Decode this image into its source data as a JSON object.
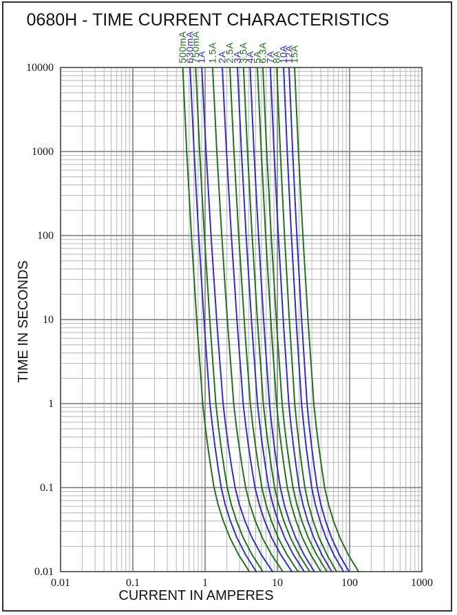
{
  "page": {
    "background": "#ffffff",
    "border_color": "#2f2f2f"
  },
  "chart": {
    "title": "0680H - TIME CURRENT CHARACTERISTICS",
    "xlabel": "CURRENT IN AMPERES",
    "ylabel": "TIME IN SECONDS",
    "x_tick_labels": [
      "0.01",
      "0.1",
      "1",
      "10",
      "100",
      "1000"
    ],
    "y_tick_labels": [
      "10000",
      "1000",
      "100",
      "10",
      "1",
      "0.1",
      "0.01"
    ]
  },
  "chart_data": {
    "type": "line",
    "title": "0680H - TIME CURRENT CHARACTERISTICS",
    "xlabel": "CURRENT IN AMPERES",
    "ylabel": "TIME IN SECONDS",
    "x_axis": {
      "scale": "log",
      "min": 0.01,
      "max": 1000,
      "ticks": [
        0.01,
        0.1,
        1,
        10,
        100,
        1000
      ]
    },
    "y_axis": {
      "scale": "log",
      "min": 0.01,
      "max": 10000,
      "ticks": [
        10000,
        1000,
        100,
        10,
        1,
        0.1,
        0.01
      ]
    },
    "grid": "log-minor-and-major",
    "legend_position": "labels-above-curves",
    "colors": {
      "green": "#1f701f",
      "blue": "#2f2fbe"
    },
    "series": [
      {
        "label": "500mA",
        "color": "green",
        "current_at_10000s": 0.49,
        "current_at_0p01s": 4.1
      },
      {
        "label": "630mA",
        "color": "blue",
        "current_at_10000s": 0.62,
        "current_at_0p01s": 5.1
      },
      {
        "label": "750mA",
        "color": "green",
        "current_at_10000s": 0.74,
        "current_at_0p01s": 6.3
      },
      {
        "label": "1A",
        "color": "blue",
        "current_at_10000s": 0.9,
        "current_at_0p01s": 8.6
      },
      {
        "label": "1.5A",
        "color": "green",
        "current_at_10000s": 1.27,
        "current_at_0p01s": 11.9
      },
      {
        "label": "2A",
        "color": "blue",
        "current_at_10000s": 1.73,
        "current_at_0p01s": 15.9
      },
      {
        "label": "2.5A",
        "color": "green",
        "current_at_10000s": 2.2,
        "current_at_0p01s": 19.3
      },
      {
        "label": "3A",
        "color": "blue",
        "current_at_10000s": 2.8,
        "current_at_0p01s": 23.5
      },
      {
        "label": "3.5A",
        "color": "green",
        "current_at_10000s": 3.4,
        "current_at_0p01s": 28.0
      },
      {
        "label": "4A",
        "color": "blue",
        "current_at_10000s": 4.2,
        "current_at_0p01s": 32.5
      },
      {
        "label": "5A",
        "color": "green",
        "current_at_10000s": 5.3,
        "current_at_0p01s": 40.0
      },
      {
        "label": "6.3A",
        "color": "green",
        "current_at_10000s": 6.3,
        "current_at_0p01s": 48.5
      },
      {
        "label": "7A",
        "color": "blue",
        "current_at_10000s": 8.0,
        "current_at_0p01s": 56.5
      },
      {
        "label": "8A",
        "color": "green",
        "current_at_10000s": 9.8,
        "current_at_0p01s": 66.0
      },
      {
        "label": "10A",
        "color": "blue",
        "current_at_10000s": 12.2,
        "current_at_0p01s": 82.0
      },
      {
        "label": "12A",
        "color": "blue",
        "current_at_10000s": 14.5,
        "current_at_0p01s": 98.0
      },
      {
        "label": "15A",
        "color": "green",
        "current_at_10000s": 17.3,
        "current_at_0p01s": 133.0
      }
    ],
    "shape_profile": {
      "description": "Shared melting-curve shape: fraction of log-current travel (from 10000s value to 0.01s value) versus log10(time in seconds).",
      "time_log10": [
        4,
        3.5,
        3,
        2.5,
        2,
        1.5,
        1,
        0.75,
        0.5,
        0.25,
        0,
        -0.25,
        -0.5,
        -0.75,
        -1,
        -1.2,
        -1.4,
        -1.6,
        -1.8,
        -2
      ],
      "fraction": [
        0,
        0.03,
        0.06,
        0.095,
        0.13,
        0.17,
        0.21,
        0.232,
        0.255,
        0.278,
        0.3,
        0.335,
        0.375,
        0.42,
        0.47,
        0.53,
        0.61,
        0.71,
        0.84,
        1.0
      ]
    },
    "style": {
      "minor_grid_color": "#b6b6b6",
      "major_grid_color": "#8a8a8a",
      "frame_color": "#5a5a5a",
      "text_color": "#111111"
    }
  }
}
